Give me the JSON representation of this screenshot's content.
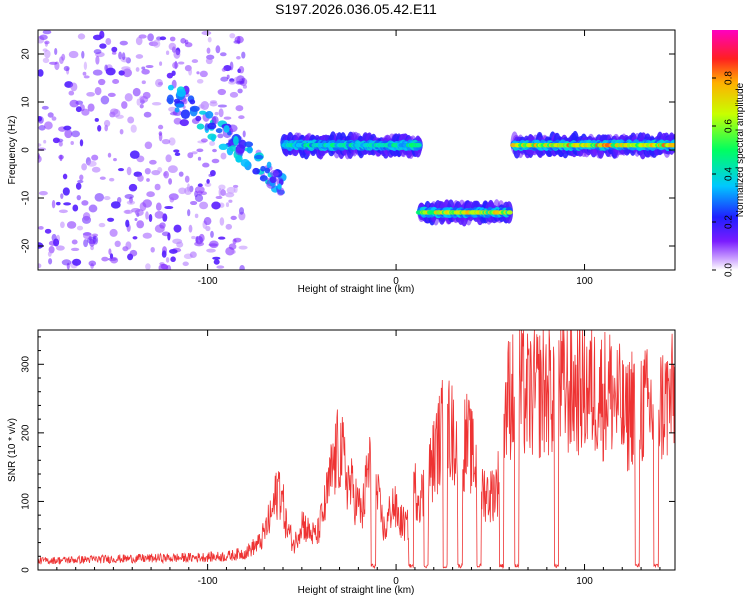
{
  "title": "S197.2026.036.05.42.E11",
  "chart_data": [
    {
      "type": "heatmap",
      "title": "S197.2026.036.05.42.E11",
      "xlabel": "Height of straight line (km)",
      "ylabel": "Frequency (Hz)",
      "xlim": [
        -190,
        148
      ],
      "ylim": [
        -25,
        25
      ],
      "xticks": [
        -100,
        0,
        100
      ],
      "xtick_labels": [
        "-100",
        "0",
        "100"
      ],
      "yticks": [
        -20,
        -10,
        0,
        10,
        20
      ],
      "ytick_labels": [
        "-20",
        "-10",
        "0",
        "10",
        "20"
      ],
      "colorbar": {
        "label": "Normalized spectral amplitude",
        "range": [
          0,
          1
        ],
        "ticks": [
          0.0,
          0.2,
          0.4,
          0.6,
          0.8
        ],
        "tick_labels": [
          "0.0",
          "0.2",
          "0.4",
          "0.6",
          "0.8"
        ],
        "colormap": "rainbow (white-violet-blue-cyan-green-yellow-red-magenta)"
      },
      "ridges": [
        {
          "name": "scatter noise",
          "x_range": [
            -190,
            -80
          ],
          "freq_range": [
            -25,
            25
          ],
          "amplitude": 0.15
        },
        {
          "name": "descending diagonal",
          "x_range": [
            -120,
            -60
          ],
          "freq_range": [
            12,
            -7
          ],
          "amplitude": 0.3
        },
        {
          "name": "near-zero line",
          "x_range": [
            -60,
            12
          ],
          "freq_center": 1,
          "amplitude": 0.5
        },
        {
          "name": "negative band",
          "x_range": [
            12,
            60
          ],
          "freq_center": -13,
          "amplitude": 0.8
        },
        {
          "name": "positive band",
          "x_range": [
            62,
            148
          ],
          "freq_center": 1,
          "amplitude": 0.85
        }
      ]
    },
    {
      "type": "line",
      "xlabel": "Height of straight line (km)",
      "ylabel": "SNR (10 * v/v)",
      "xlim": [
        -190,
        148
      ],
      "ylim": [
        0,
        350
      ],
      "xticks": [
        -100,
        0,
        100
      ],
      "xtick_labels": [
        "-100",
        "0",
        "100"
      ],
      "yticks": [
        0,
        100,
        200,
        300
      ],
      "ytick_labels": [
        "0",
        "100",
        "200",
        "300"
      ],
      "color": "#ee3333",
      "series": [
        {
          "name": "SNR",
          "x": [
            -190,
            -150,
            -110,
            -90,
            -80,
            -72,
            -66,
            -62,
            -58,
            -54,
            -50,
            -46,
            -42,
            -38,
            -34,
            -30,
            -26,
            -22,
            -18,
            -14,
            -10,
            -6,
            -2,
            2,
            6,
            10,
            14,
            18,
            22,
            26,
            30,
            34,
            38,
            42,
            46,
            50,
            54,
            58,
            62,
            66,
            70,
            74,
            78,
            82,
            86,
            90,
            94,
            98,
            102,
            106,
            110,
            114,
            118,
            122,
            126,
            130,
            134,
            138,
            142,
            148
          ],
          "values": [
            15,
            18,
            20,
            22,
            28,
            45,
            90,
            140,
            70,
            40,
            80,
            60,
            55,
            100,
            160,
            200,
            150,
            120,
            90,
            180,
            120,
            60,
            110,
            80,
            70,
            130,
            120,
            160,
            200,
            240,
            220,
            200,
            210,
            170,
            130,
            120,
            140,
            260,
            300,
            290,
            280,
            285,
            290,
            295,
            300,
            295,
            290,
            300,
            295,
            290,
            285,
            290,
            270,
            240,
            280,
            270,
            260,
            265,
            270,
            280
          ]
        }
      ],
      "dropouts_x": [
        -12,
        8,
        16,
        26,
        34,
        44,
        56,
        64,
        85,
        128,
        138
      ]
    }
  ]
}
